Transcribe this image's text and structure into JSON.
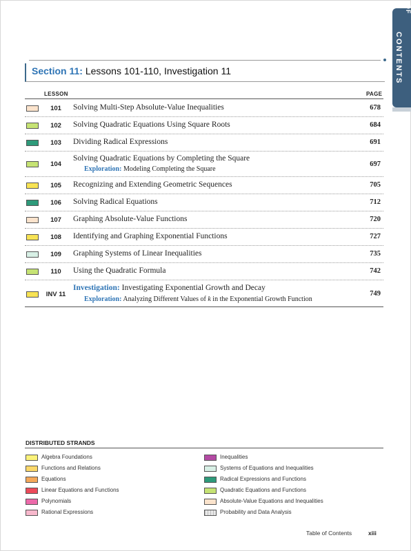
{
  "side_tab": {
    "label": "CONTENTS",
    "partial": "TABLE OF"
  },
  "section": {
    "number": "Section 11:",
    "title": "Lessons 101-110, Investigation 11"
  },
  "table": {
    "col_lesson": "LESSON",
    "col_page": "PAGE",
    "rows": [
      {
        "num": "101",
        "title": "Solving Multi-Step Absolute-Value Inequalities",
        "page": "678",
        "color": "#fbe3cc"
      },
      {
        "num": "102",
        "title": "Solving Quadratic Equations Using Square Roots",
        "page": "684",
        "color": "#c6e374"
      },
      {
        "num": "103",
        "title": "Dividing Radical Expressions",
        "page": "691",
        "color": "#2e9a7a"
      },
      {
        "num": "104",
        "title": "Solving Quadratic Equations by Completing the Square",
        "sub_label": "Exploration:",
        "sub_text": "Modeling Completing the Square",
        "page": "697",
        "color": "#c6e374"
      },
      {
        "num": "105",
        "title": "Recognizing and Extending Geometric Sequences",
        "page": "705",
        "color": "#f7e354"
      },
      {
        "num": "106",
        "title": "Solving Radical Equations",
        "page": "712",
        "color": "#2e9a7a"
      },
      {
        "num": "107",
        "title": "Graphing Absolute-Value Functions",
        "page": "720",
        "color": "#fbe3cc"
      },
      {
        "num": "108",
        "title": "Identifying and Graphing Exponential Functions",
        "page": "727",
        "color": "#f7e354"
      },
      {
        "num": "109",
        "title": "Graphing Systems of Linear Inequalities",
        "page": "735",
        "color": "#d8f0e6"
      },
      {
        "num": "110",
        "title": "Using the Quadratic Formula",
        "page": "742",
        "color": "#c6e374"
      },
      {
        "num": "INV 11",
        "title_label": "Investigation:",
        "title": "Investigating Exponential Growth and Decay",
        "sub_label": "Exploration:",
        "sub_text_pre": "Analyzing Different Values of ",
        "sub_var": "k",
        "sub_text_post": " in the Exponential Growth Function",
        "page": "749",
        "color": "#f7e354"
      }
    ]
  },
  "strands": {
    "title": "DISTRIBUTED STRANDS",
    "left": [
      {
        "label": "Algebra Foundations",
        "color": "#fbf27a"
      },
      {
        "label": "Functions and Relations",
        "color": "#fbd86a"
      },
      {
        "label": "Equations",
        "color": "#f4a85a"
      },
      {
        "label": "Linear Equations and Functions",
        "color": "#ec4a5a"
      },
      {
        "label": "Polynomials",
        "color": "#ec6aaa"
      },
      {
        "label": "Rational Expressions",
        "color": "#f7b8cc"
      }
    ],
    "right": [
      {
        "label": "Inequalities",
        "color": "#b44aa4"
      },
      {
        "label": "Systems of Equations and Inequalities",
        "color": "#d8f0e6"
      },
      {
        "label": "Radical Expressions and Functions",
        "color": "#2e9a7a"
      },
      {
        "label": "Quadratic Equations and Functions",
        "color": "#c6e374"
      },
      {
        "label": "Absolute-Value Equations and Inequalities",
        "color": "#fbe3cc"
      },
      {
        "label": "Probability and Data Analysis",
        "color": "#e8e8e8"
      }
    ]
  },
  "footer": {
    "label": "Table of Contents",
    "page": "xiii"
  }
}
